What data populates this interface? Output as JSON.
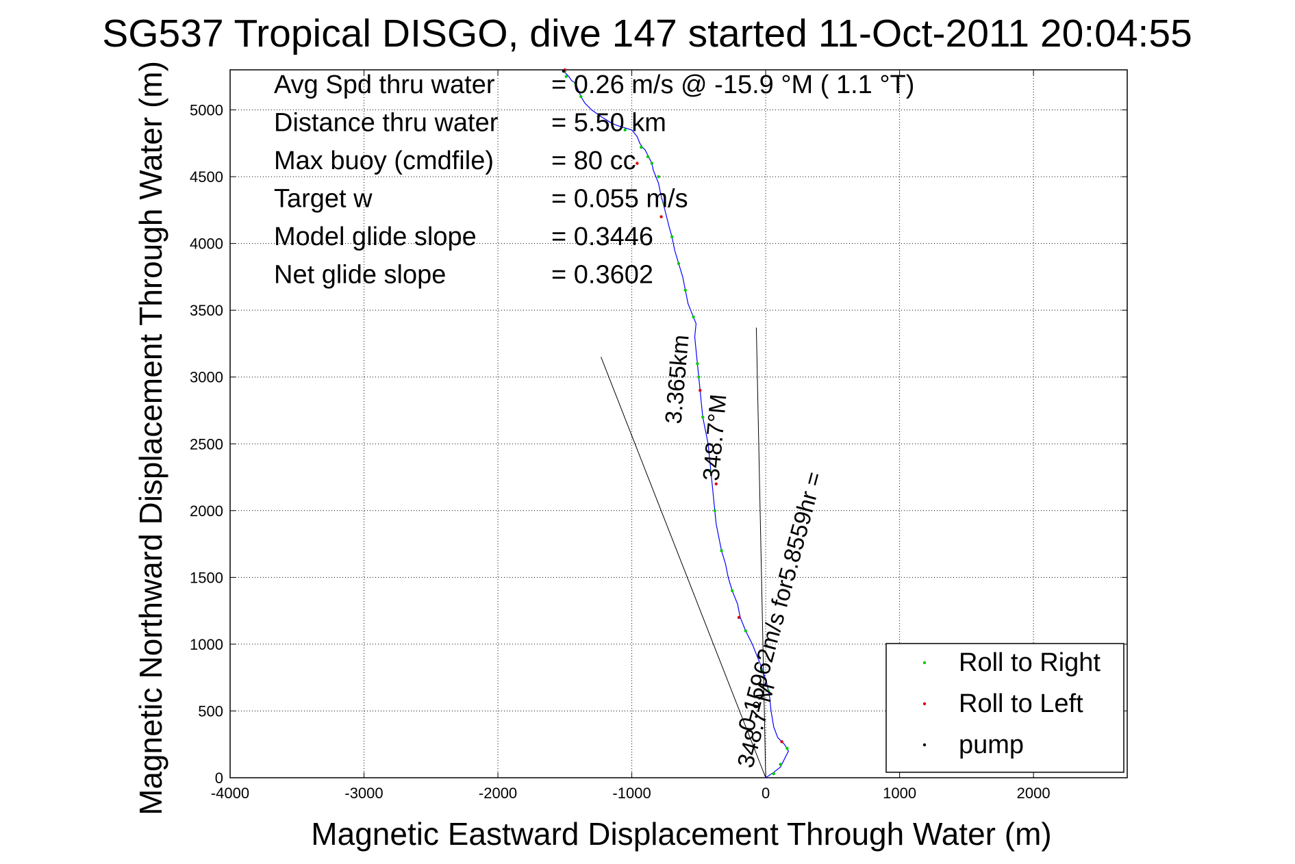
{
  "chart_data": {
    "type": "scatter",
    "title": "SG537 Tropical DISGO, dive 147 started 11-Oct-2011 20:04:55",
    "xlabel": "Magnetic Eastward Displacement Through Water (m)",
    "ylabel": "Magnetic Northward Displacement Through Water (m)",
    "xlim": [
      -4000,
      2700
    ],
    "ylim": [
      0,
      5300
    ],
    "xticks": [
      -4000,
      -3000,
      -2000,
      -1000,
      0,
      1000,
      2000
    ],
    "yticks": [
      0,
      500,
      1000,
      1500,
      2000,
      2500,
      3000,
      3500,
      4000,
      4500,
      5000
    ],
    "grid": true,
    "legend_position": "bottom-right",
    "annotations": [
      {
        "label": "Avg Spd thru water",
        "value": "=  0.26 m/s @ -15.9 °M (  1.1 °T)"
      },
      {
        "label": "Distance thru water",
        "value": "=  5.50 km"
      },
      {
        "label": "Max buoy (cmdfile)",
        "value": "= 80 cc"
      },
      {
        "label": "Target w",
        "value": "= 0.055 m/s"
      },
      {
        "label": "Model glide slope",
        "value": "= 0.3446"
      },
      {
        "label": "Net glide slope",
        "value": "= 0.3602"
      }
    ],
    "rotated_labels": [
      {
        "text": "3.365km",
        "angle": -85
      },
      {
        "text": "0.15962m/s for5.8559hr =",
        "angle": -75
      },
      {
        "text": "348.7°M",
        "angle": -85
      },
      {
        "text": "348.7°M",
        "angle": -75
      }
    ],
    "ref_lines": [
      {
        "x": [
          0,
          -1230
        ],
        "y": [
          0,
          3150
        ]
      },
      {
        "x": [
          0,
          -70
        ],
        "y": [
          0,
          3370
        ]
      }
    ],
    "series": [
      {
        "name": "track",
        "color": "#0000ff",
        "x": [
          0,
          60,
          110,
          170,
          140,
          90,
          60,
          40,
          30,
          10,
          -20,
          -60,
          -100,
          -150,
          -190,
          -210,
          -250,
          -280,
          -300,
          -330,
          -350,
          -370,
          -380,
          -390,
          -400,
          -410,
          -420,
          -430,
          -450,
          -470,
          -480,
          -490,
          -500,
          -510,
          -520,
          -530,
          -520,
          -540,
          -560,
          -580,
          -600,
          -620,
          -650,
          -680,
          -700,
          -720,
          -740,
          -760,
          -780,
          -790,
          -800,
          -820,
          -840,
          -850,
          -870,
          -880,
          -890,
          -900,
          -920,
          -940,
          -960,
          -1000,
          -1100,
          -1150,
          -1230,
          -1300,
          -1350,
          -1380,
          -1400,
          -1420,
          -1450,
          -1470,
          -1490,
          -1500,
          -1510,
          -1510,
          -1520
        ],
        "y": [
          0,
          40,
          80,
          200,
          250,
          300,
          380,
          500,
          600,
          700,
          800,
          900,
          1000,
          1100,
          1200,
          1300,
          1400,
          1500,
          1600,
          1700,
          1800,
          1900,
          2000,
          2100,
          2200,
          2300,
          2400,
          2500,
          2600,
          2700,
          2800,
          2900,
          3000,
          3100,
          3200,
          3300,
          3400,
          3450,
          3500,
          3550,
          3650,
          3750,
          3850,
          3950,
          4050,
          4120,
          4200,
          4280,
          4350,
          4400,
          4450,
          4500,
          4550,
          4600,
          4640,
          4660,
          4680,
          4700,
          4720,
          4750,
          4800,
          4850,
          4880,
          4900,
          4950,
          5000,
          5050,
          5100,
          5150,
          5200,
          5220,
          5250,
          5270,
          5280,
          5290,
          5300,
          5300
        ]
      },
      {
        "name": "Roll to Right",
        "color": "#00cc00",
        "x": [
          60,
          110,
          160,
          20,
          -30,
          -150,
          -250,
          -330,
          -380,
          -420,
          -470,
          -500,
          -510,
          -540,
          -600,
          -650,
          -700,
          -760,
          -800,
          -850,
          -880,
          -930,
          -1050,
          -1250,
          -1380,
          -1420,
          -1490,
          -1500
        ],
        "y": [
          30,
          100,
          220,
          650,
          800,
          1100,
          1400,
          1700,
          2000,
          2300,
          2700,
          3000,
          3100,
          3450,
          3650,
          3850,
          4050,
          4300,
          4500,
          4600,
          4650,
          4720,
          4850,
          4950,
          5100,
          5200,
          5250,
          5290
        ]
      },
      {
        "name": "Roll to Left",
        "color": "#dd0000",
        "x": [
          120,
          -200,
          -370,
          -490,
          -780,
          -960,
          -1500
        ],
        "y": [
          270,
          1200,
          2200,
          2900,
          4200,
          4600,
          5300
        ]
      },
      {
        "name": "pump",
        "color": "#000000",
        "x": [
          -1510
        ],
        "y": [
          5290
        ]
      }
    ]
  }
}
